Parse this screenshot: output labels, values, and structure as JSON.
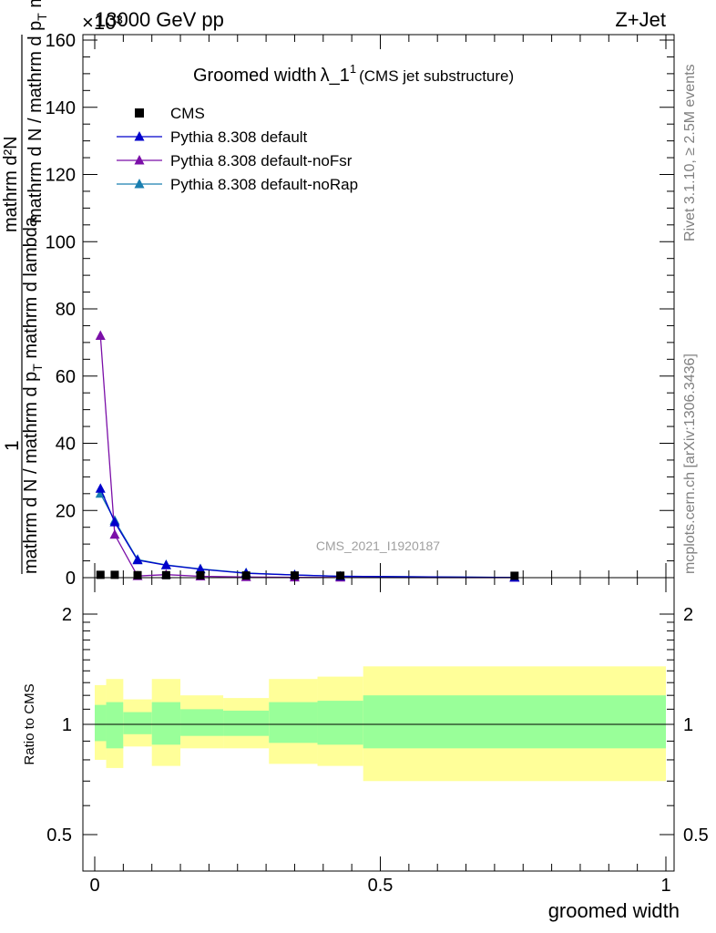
{
  "header": {
    "left": "13000 GeV pp",
    "right": "Z+Jet",
    "exponent": "×10³"
  },
  "side_labels": {
    "rivet": "Rivet 3.1.10, ≥ 2.5M events",
    "mcplots": "mcplots.cern.ch [arXiv:1306.3436]"
  },
  "watermark": "CMS_2021_I1920187",
  "colors": {
    "cms": "#000000",
    "default": "#0000cc",
    "noFsr": "#7b0fa8",
    "noRap": "#1a7fb0",
    "band_inner": "#99ff99",
    "band_outer": "#ffff99"
  },
  "chart_data": [
    {
      "type": "line",
      "panel": "main",
      "title": "Groomed width",
      "title_symbol": "λ_1",
      "title_superscript": "1",
      "title_note": "(CMS jet substructure)",
      "ylabel_top": "1",
      "ylabel_frac_num": "mathrm d N / mathrm d p",
      "ylabel_frac_num_sub": "T",
      "ylabel_frac_rest": " mathrm d lambda",
      "ylabel_den": "mathrm d N / mathrm d p",
      "ylabel_den_sub": "T",
      "ylabel_den_rest": " mathrm d lambda",
      "ylabel_numtop": "mathrm d²N",
      "xlim": [
        0,
        1
      ],
      "ylim": [
        0,
        160
      ],
      "yticks": [
        0,
        20,
        40,
        60,
        80,
        100,
        120,
        140,
        160
      ],
      "ytick_labels": [
        "0",
        "20",
        "40",
        "60",
        "80",
        "100",
        "120",
        "140",
        "160"
      ],
      "legend_position": "top-left",
      "series": [
        {
          "name": "CMS",
          "key": "cms",
          "marker": "square",
          "x": [
            0.01,
            0.035,
            0.075,
            0.125,
            0.185,
            0.265,
            0.35,
            0.43,
            0.735
          ],
          "y": [
            0.3,
            0.3,
            0.2,
            0.2,
            0.15,
            0.1,
            0.1,
            0.05,
            0.02
          ]
        },
        {
          "name": "Pythia 8.308 default",
          "key": "default",
          "marker": "triangle",
          "x": [
            0.01,
            0.035,
            0.075,
            0.125,
            0.185,
            0.265,
            0.35,
            0.43,
            0.735
          ],
          "y": [
            26.5,
            16.5,
            5.2,
            3.7,
            2.5,
            1.3,
            0.8,
            0.4,
            0.05
          ]
        },
        {
          "name": "Pythia 8.308 default-noFsr",
          "key": "noFsr",
          "marker": "triangle",
          "x": [
            0.01,
            0.035,
            0.075,
            0.125,
            0.185,
            0.265,
            0.35,
            0.43,
            0.735
          ],
          "y": [
            72,
            12.8,
            0.5,
            0.9,
            0.4,
            0.2,
            0.1,
            0.05,
            0.01
          ]
        },
        {
          "name": "Pythia 8.308 default-noRap",
          "key": "noRap",
          "marker": "triangle",
          "x": [
            0.01,
            0.035,
            0.075,
            0.125,
            0.185,
            0.265,
            0.35,
            0.43,
            0.735
          ],
          "y": [
            25.0,
            17.0,
            5.4,
            3.8,
            2.6,
            1.4,
            0.8,
            0.4,
            0.05
          ]
        }
      ]
    },
    {
      "type": "area",
      "panel": "ratio",
      "ylabel": "Ratio to CMS",
      "xlabel": "groomed width",
      "xlim": [
        0,
        1
      ],
      "ylim": [
        0.4,
        2.4
      ],
      "log_y": true,
      "yticks": [
        0.5,
        1,
        2
      ],
      "ytick_labels": [
        "0.5",
        "1",
        "2"
      ],
      "xticks": [
        0,
        0.5,
        1
      ],
      "xtick_labels": [
        "0",
        "0.5",
        "1"
      ],
      "bins": [
        {
          "x0": 0.0,
          "x1": 0.02,
          "inner": [
            0.9,
            1.13
          ],
          "outer": [
            0.8,
            1.28
          ]
        },
        {
          "x0": 0.02,
          "x1": 0.05,
          "inner": [
            0.86,
            1.15
          ],
          "outer": [
            0.76,
            1.33
          ]
        },
        {
          "x0": 0.05,
          "x1": 0.1,
          "inner": [
            0.94,
            1.08
          ],
          "outer": [
            0.87,
            1.17
          ]
        },
        {
          "x0": 0.1,
          "x1": 0.15,
          "inner": [
            0.88,
            1.15
          ],
          "outer": [
            0.77,
            1.33
          ]
        },
        {
          "x0": 0.15,
          "x1": 0.225,
          "inner": [
            0.93,
            1.1
          ],
          "outer": [
            0.86,
            1.2
          ]
        },
        {
          "x0": 0.225,
          "x1": 0.305,
          "inner": [
            0.93,
            1.09
          ],
          "outer": [
            0.86,
            1.18
          ]
        },
        {
          "x0": 0.305,
          "x1": 0.39,
          "inner": [
            0.89,
            1.15
          ],
          "outer": [
            0.78,
            1.33
          ]
        },
        {
          "x0": 0.39,
          "x1": 0.47,
          "inner": [
            0.88,
            1.16
          ],
          "outer": [
            0.77,
            1.35
          ]
        },
        {
          "x0": 0.47,
          "x1": 1.0,
          "inner": [
            0.86,
            1.2
          ],
          "outer": [
            0.7,
            1.44
          ]
        }
      ]
    }
  ]
}
